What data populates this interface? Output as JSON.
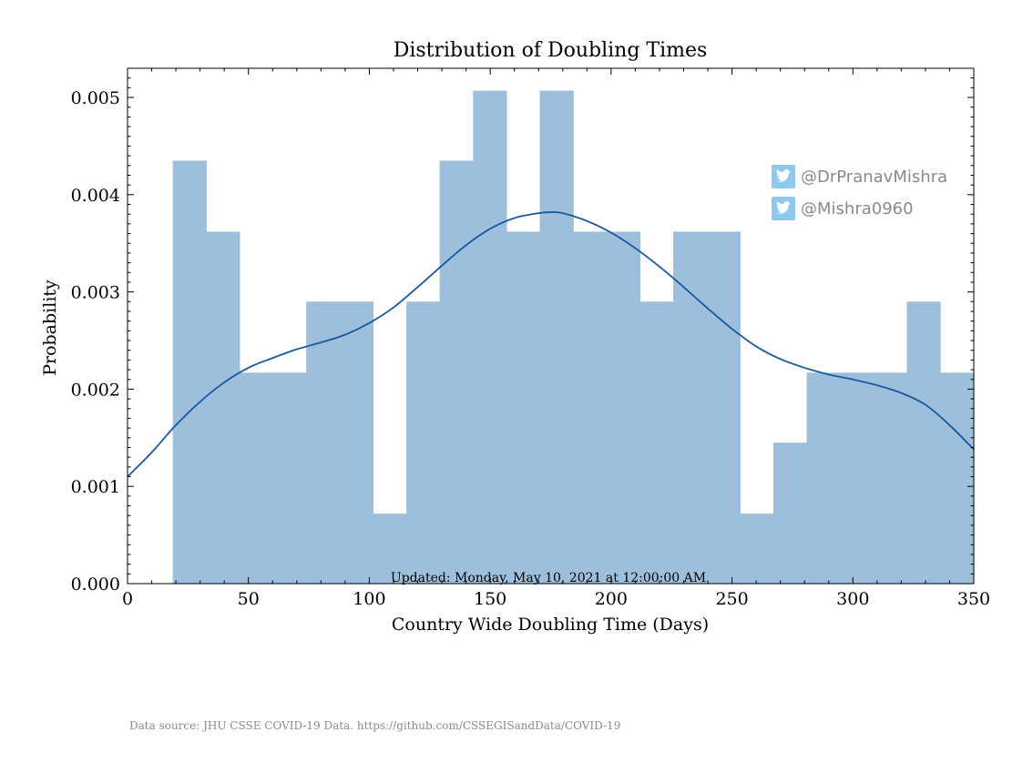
{
  "chart_data": {
    "type": "bar",
    "title": "Distribution of Doubling Times",
    "xlabel": "Country Wide Doubling Time (Days)",
    "ylabel": "Probability",
    "xlim": [
      0,
      350
    ],
    "ylim": [
      0,
      0.0053
    ],
    "x_ticks": [
      "0",
      "50",
      "100",
      "150",
      "200",
      "250",
      "300",
      "350"
    ],
    "y_ticks": [
      "0.000",
      "0.001",
      "0.002",
      "0.003",
      "0.004",
      "0.005"
    ],
    "bins": {
      "edges": [
        18.7,
        32.5,
        46.3,
        60.1,
        73.9,
        87.7,
        101.5,
        115.3,
        129.1,
        142.9,
        156.7,
        170.5,
        184.3,
        198.1,
        211.9,
        225.7,
        239.5,
        253.3,
        267.1,
        280.9,
        294.7,
        308.5,
        322.3,
        336.1,
        349.9
      ],
      "values": [
        0.00435,
        0.00362,
        0.00217,
        0.00217,
        0.0029,
        0.0029,
        0.00072,
        0.0029,
        0.00435,
        0.00507,
        0.00362,
        0.00507,
        0.00362,
        0.00362,
        0.0029,
        0.00362,
        0.00362,
        0.00072,
        0.00145,
        0.00217,
        0.00217,
        0.00217,
        0.0029,
        0.00217
      ]
    },
    "kde": {
      "name": "",
      "x": [
        0,
        10,
        20,
        30,
        40,
        50,
        60,
        70,
        80,
        90,
        100,
        110,
        120,
        130,
        140,
        150,
        160,
        170,
        175,
        180,
        190,
        200,
        210,
        220,
        230,
        240,
        250,
        260,
        270,
        280,
        290,
        300,
        310,
        320,
        330,
        340,
        350
      ],
      "y": [
        0.0011,
        0.00135,
        0.00163,
        0.00187,
        0.00207,
        0.00222,
        0.00232,
        0.00241,
        0.00248,
        0.00256,
        0.00268,
        0.00284,
        0.00305,
        0.00327,
        0.00348,
        0.00365,
        0.00376,
        0.00381,
        0.00382,
        0.00381,
        0.00373,
        0.00361,
        0.00345,
        0.00326,
        0.00305,
        0.00283,
        0.00262,
        0.00244,
        0.00231,
        0.00222,
        0.00215,
        0.0021,
        0.00204,
        0.00196,
        0.00184,
        0.00163,
        0.00138
      ]
    },
    "colors": {
      "bars": "#9ebfdb",
      "kde": "#17599f",
      "twitter": "#90c9ee"
    },
    "grid": false,
    "annotation": "Updated: Monday, May 10, 2021 at 12:00:00 AM"
  },
  "watermarks": [
    {
      "icon": "twitter-icon",
      "handle": "@DrPranavMishra"
    },
    {
      "icon": "twitter-icon",
      "handle": "@Mishra0960"
    }
  ],
  "footer": {
    "source": "Data source: JHU CSSE COVID-19 Data. https://github.com/CSSEGISandData/COVID-19"
  }
}
